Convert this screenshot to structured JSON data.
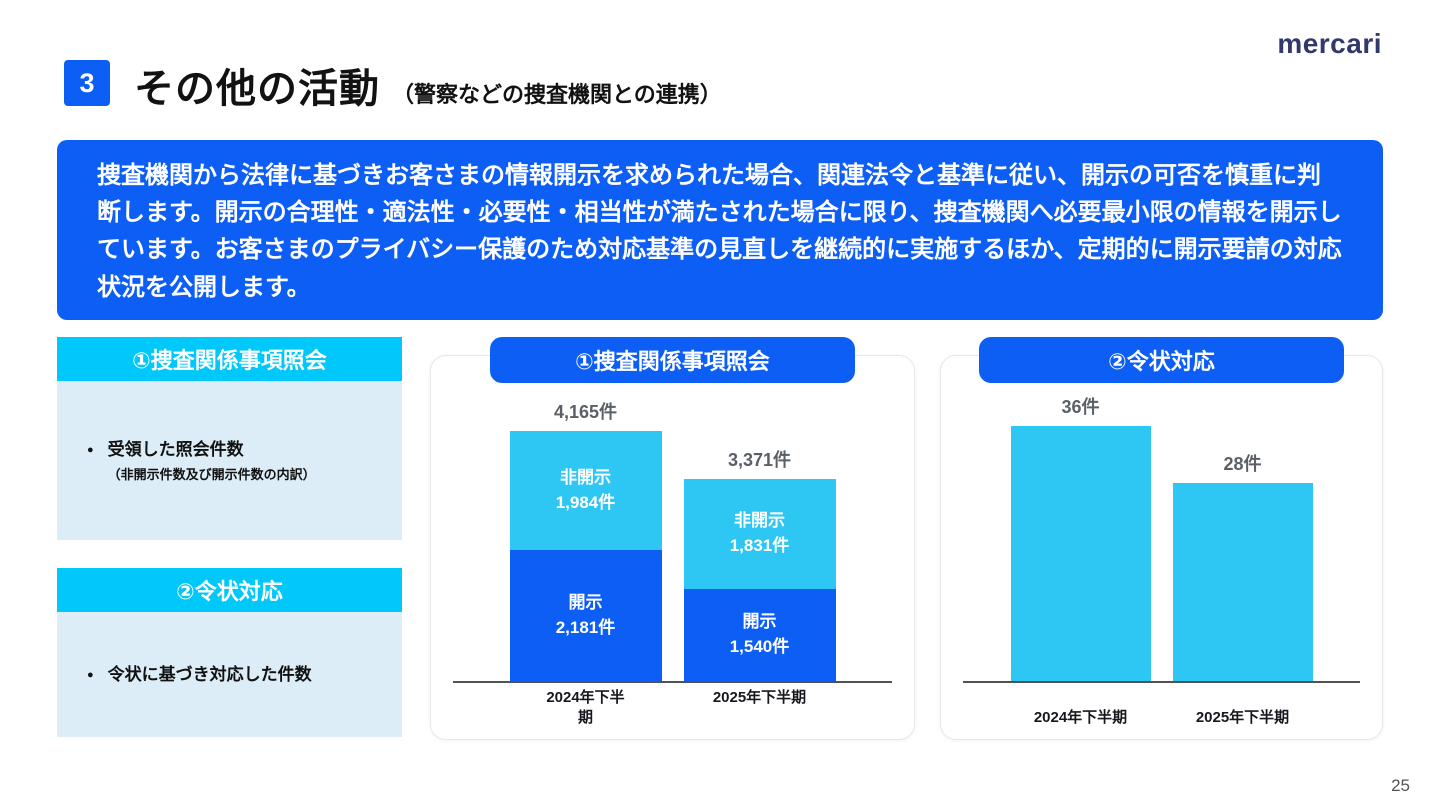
{
  "header": {
    "badge": "3",
    "title": "その他の活動",
    "subtitle": "（警察などの捜査機関との連携）",
    "logo": "mercari"
  },
  "banner": {
    "text": "捜査機関から法律に基づきお客さまの情報開示を求められた場合、関連法令と基準に従い、開示の可否を慎重に判断します。開示の合理性・適法性・必要性・相当性が満たされた場合に限り、捜査機関へ必要最小限の情報を開示しています。お客さまのプライバシー保護のため対応基準の見直しを継続的に実施するほか、定期的に開示要請の対応状況を公開します。"
  },
  "left_panel": {
    "section1": {
      "header": "①捜査関係事項照会",
      "bullet": "受領した照会件数",
      "note": "（非開示件数及び開示件数の内訳）"
    },
    "section2": {
      "header": "②令状対応",
      "bullet": "令状に基づき対応した件数"
    }
  },
  "icons": {
    "bullet": "●"
  },
  "colors": {
    "blue": "#0d5ef5",
    "cyan_header": "#00c8fa",
    "bar_cyan": "#2ec6f2",
    "light_blue_bg": "#dcedf8"
  },
  "footer": {
    "page_number": "25"
  },
  "chart_data": [
    {
      "type": "bar",
      "stacked": true,
      "title": "①捜査関係事項照会",
      "unit": "件",
      "categories": [
        "2024年下半\n期",
        "2025年下半期"
      ],
      "totals": [
        4165,
        3371
      ],
      "total_labels": [
        "4,165件",
        "3,371件"
      ],
      "series": [
        {
          "name": "非開示",
          "values": [
            1984,
            1831
          ],
          "value_labels": [
            "1,984件",
            "1,831件"
          ],
          "color": "#2ec6f2"
        },
        {
          "name": "開示",
          "values": [
            2181,
            1540
          ],
          "value_labels": [
            "2,181件",
            "1,540件"
          ],
          "color": "#0d5ef5"
        }
      ],
      "ylim": [
        0,
        4165
      ],
      "legend_position": "none",
      "grid": false
    },
    {
      "type": "bar",
      "stacked": false,
      "title": "②令状対応",
      "unit": "件",
      "categories": [
        "2024年下半期",
        "2025年下半期"
      ],
      "values": [
        36,
        28
      ],
      "value_labels": [
        "36件",
        "28件"
      ],
      "color": "#2ec6f2",
      "ylim": [
        0,
        36
      ],
      "legend_position": "none",
      "grid": false
    }
  ]
}
